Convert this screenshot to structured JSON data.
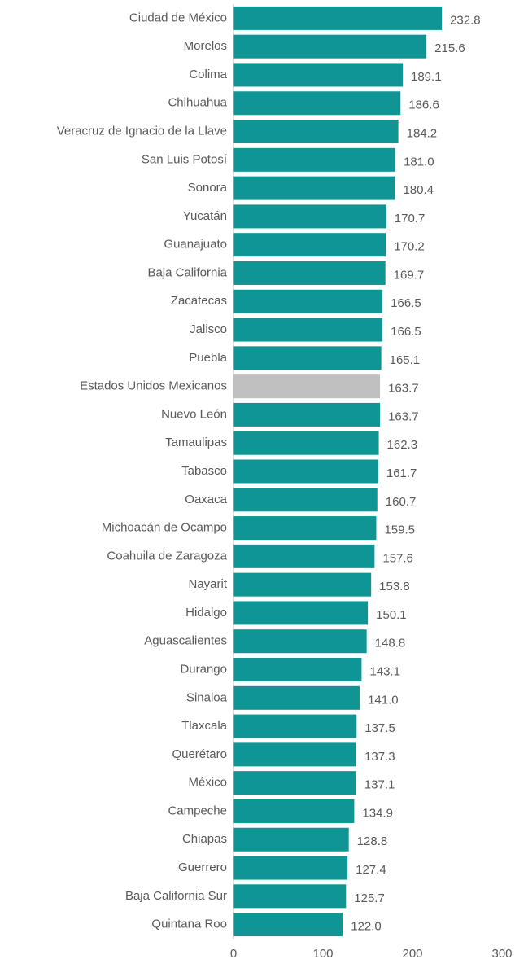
{
  "chart_data": {
    "type": "barh",
    "categories": [
      "Ciudad de México",
      "Morelos",
      "Colima",
      "Chihuahua",
      "Veracruz de Ignacio de la Llave",
      "San Luis Potosí",
      "Sonora",
      "Yucatán",
      "Guanajuato",
      "Baja California",
      "Zacatecas",
      "Jalisco",
      "Puebla",
      "Estados Unidos Mexicanos",
      "Nuevo León",
      "Tamaulipas",
      "Tabasco",
      "Oaxaca",
      "Michoacán de Ocampo",
      "Coahuila de Zaragoza",
      "Nayarit",
      "Hidalgo",
      "Aguascalientes",
      "Durango",
      "Sinaloa",
      "Tlaxcala",
      "Querétaro",
      "México",
      "Campeche",
      "Chiapas",
      "Guerrero",
      "Baja California Sur",
      "Quintana Roo"
    ],
    "values": [
      232.8,
      215.6,
      189.1,
      186.6,
      184.2,
      181.0,
      180.4,
      170.7,
      170.2,
      169.7,
      166.5,
      166.5,
      165.1,
      163.7,
      163.7,
      162.3,
      161.7,
      160.7,
      159.5,
      157.6,
      153.8,
      150.1,
      148.8,
      143.1,
      141.0,
      137.5,
      137.3,
      137.1,
      134.9,
      128.8,
      127.4,
      125.7,
      122.0
    ],
    "value_labels": [
      "232.8",
      "215.6",
      "189.1",
      "186.6",
      "184.2",
      "181.0",
      "180.4",
      "170.7",
      "170.2",
      "169.7",
      "166.5",
      "166.5",
      "165.1",
      "163.7",
      "163.7",
      "162.3",
      "161.7",
      "160.7",
      "159.5",
      "157.6",
      "153.8",
      "150.1",
      "148.8",
      "143.1",
      "141.0",
      "137.5",
      "137.3",
      "137.1",
      "134.9",
      "128.8",
      "127.4",
      "125.7",
      "122.0"
    ],
    "colors": [
      "#0e9594",
      "#0e9594",
      "#0e9594",
      "#0e9594",
      "#0e9594",
      "#0e9594",
      "#0e9594",
      "#0e9594",
      "#0e9594",
      "#0e9594",
      "#0e9594",
      "#0e9594",
      "#0e9594",
      "#c0c0c0",
      "#0e9594",
      "#0e9594",
      "#0e9594",
      "#0e9594",
      "#0e9594",
      "#0e9594",
      "#0e9594",
      "#0e9594",
      "#0e9594",
      "#0e9594",
      "#0e9594",
      "#0e9594",
      "#0e9594",
      "#0e9594",
      "#0e9594",
      "#0e9594",
      "#0e9594",
      "#0e9594",
      "#0e9594"
    ],
    "xlim": [
      0,
      300
    ],
    "xticks": [
      0,
      100,
      200,
      300
    ],
    "grid": false
  }
}
